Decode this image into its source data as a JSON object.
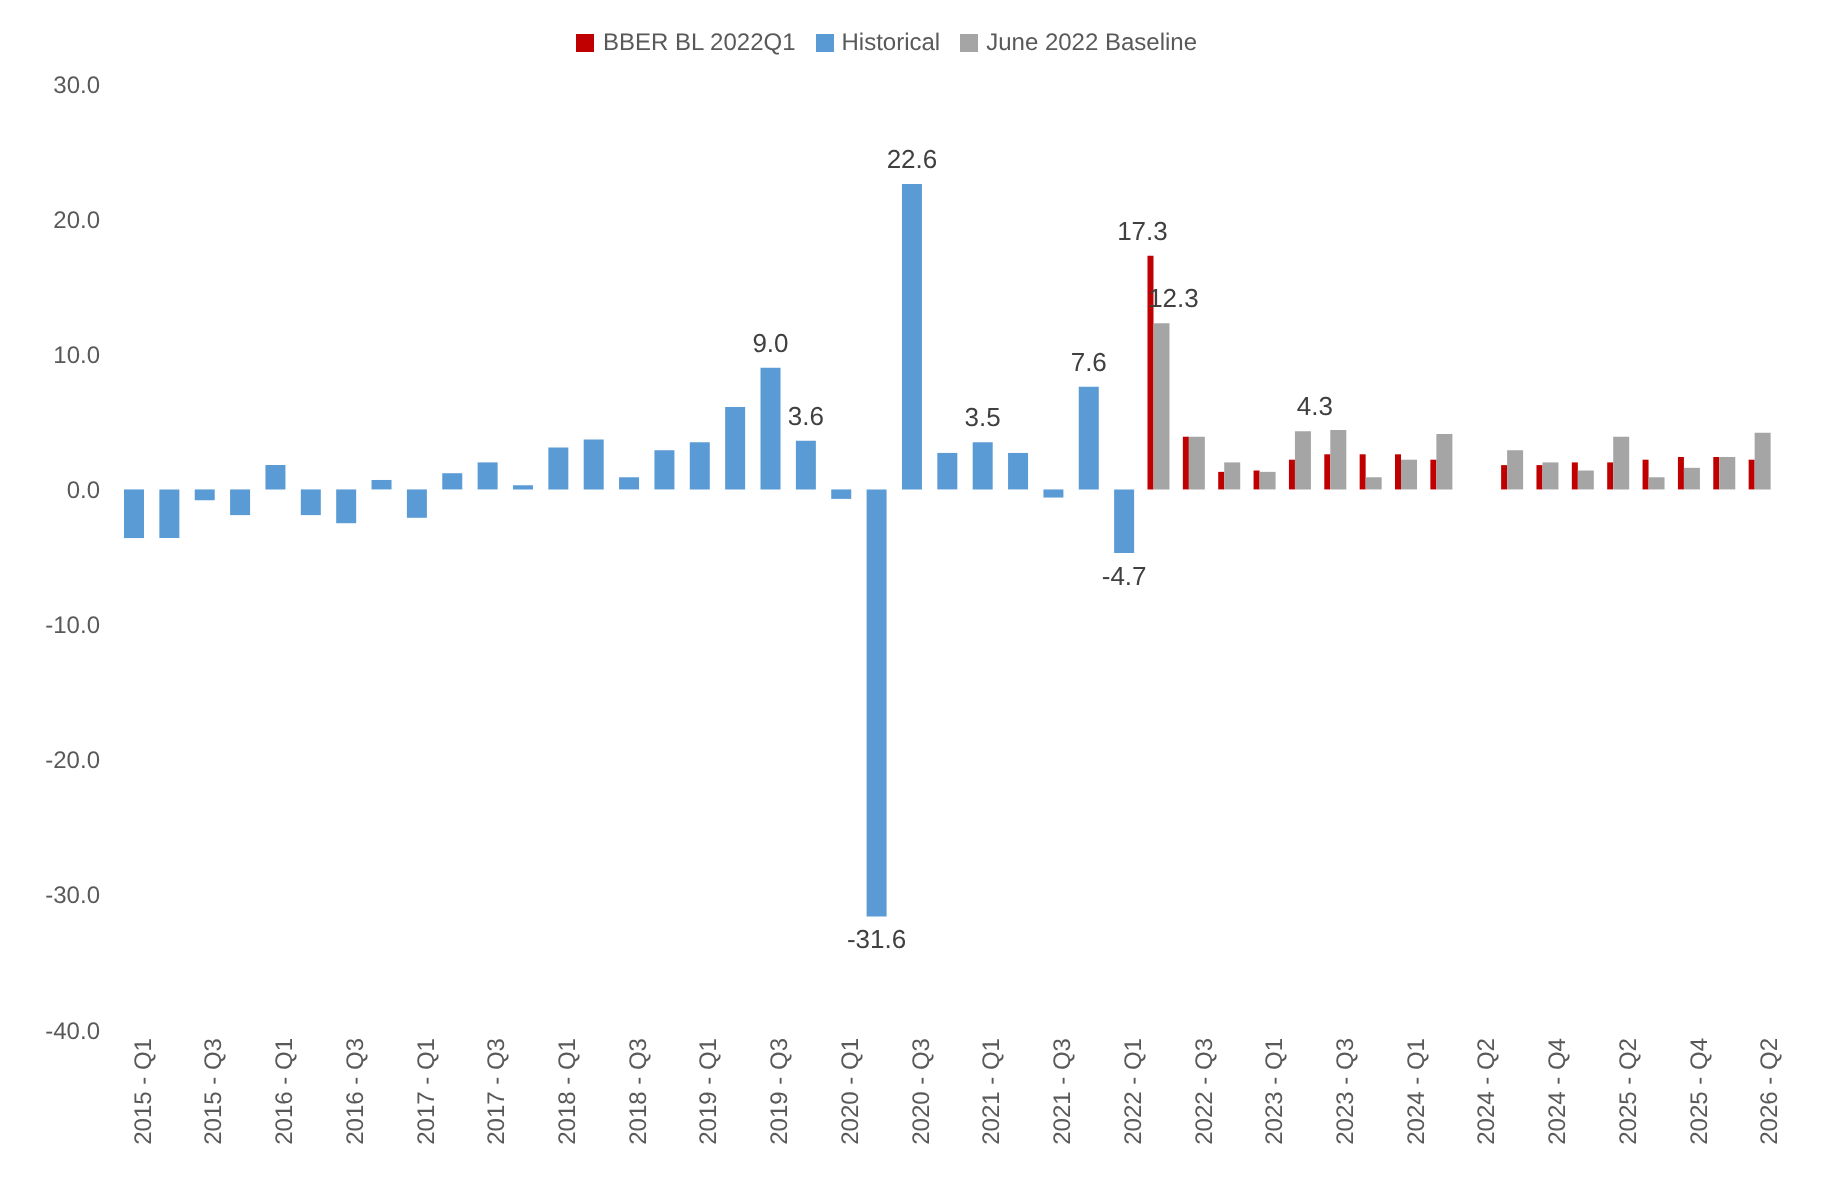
{
  "chart_data": {
    "type": "bar",
    "categories": [
      "2015 - Q1",
      null,
      "2015 - Q3",
      null,
      "2016 - Q1",
      null,
      "2016 - Q3",
      null,
      "2017 - Q1",
      null,
      "2017 - Q3",
      null,
      "2018 - Q1",
      null,
      "2018 - Q3",
      null,
      "2019 - Q1",
      null,
      "2019 - Q3",
      null,
      "2020 - Q1",
      null,
      "2020 - Q3",
      null,
      "2021 - Q1",
      null,
      "2021 - Q3",
      null,
      "2022 - Q1",
      null,
      "2022 - Q3",
      null,
      "2023 - Q1",
      null,
      "2023 - Q3",
      null,
      "2024 - Q1",
      null,
      "2024 - Q2",
      null,
      "2024 - Q4",
      null,
      "2025 - Q2",
      null,
      "2025 - Q4",
      null,
      "2026 - Q2"
    ],
    "series": [
      {
        "name": "Historical",
        "color": "#5b9bd5",
        "values": [
          -3.6,
          -3.6,
          -0.8,
          -1.9,
          1.8,
          -1.9,
          -2.5,
          0.7,
          -2.1,
          1.2,
          2.0,
          0.3,
          3.1,
          3.7,
          0.9,
          2.9,
          3.5,
          6.1,
          9.0,
          3.6,
          -0.7,
          -31.6,
          22.6,
          2.7,
          3.5,
          2.7,
          -0.6,
          7.6,
          -4.7,
          null,
          null,
          null,
          null,
          null,
          null,
          null,
          null,
          null,
          null,
          null,
          null,
          null,
          null,
          null,
          null,
          null,
          null
        ],
        "value_labels": [
          null,
          null,
          null,
          null,
          null,
          null,
          null,
          null,
          null,
          null,
          null,
          null,
          null,
          null,
          null,
          null,
          null,
          null,
          "9.0",
          "3.6",
          null,
          "-31.6",
          "22.6",
          null,
          "3.5",
          null,
          null,
          "7.6",
          "-4.7",
          null,
          null,
          null,
          null,
          null,
          null,
          null,
          null,
          null,
          null,
          null,
          null,
          null,
          null,
          null,
          null,
          null,
          null
        ]
      },
      {
        "name": "BBER BL 2022Q1",
        "color": "#c00000",
        "values": [
          null,
          null,
          null,
          null,
          null,
          null,
          null,
          null,
          null,
          null,
          null,
          null,
          null,
          null,
          null,
          null,
          null,
          null,
          null,
          null,
          null,
          null,
          null,
          null,
          null,
          null,
          null,
          null,
          null,
          17.3,
          3.9,
          1.3,
          1.4,
          2.2,
          2.6,
          2.6,
          2.6,
          2.2,
          null,
          1.8,
          1.8,
          2.0,
          2.0,
          2.2,
          2.4,
          2.4,
          2.2
        ],
        "value_labels": [
          null,
          null,
          null,
          null,
          null,
          null,
          null,
          null,
          null,
          null,
          null,
          null,
          null,
          null,
          null,
          null,
          null,
          null,
          null,
          null,
          null,
          null,
          null,
          null,
          null,
          null,
          null,
          null,
          null,
          "17.3",
          null,
          null,
          null,
          null,
          null,
          null,
          null,
          null,
          null,
          null,
          null,
          null,
          null,
          null,
          null,
          null,
          null
        ]
      },
      {
        "name": "June 2022 Baseline",
        "color": "#a5a5a5",
        "values": [
          null,
          null,
          null,
          null,
          null,
          null,
          null,
          null,
          null,
          null,
          null,
          null,
          null,
          null,
          null,
          null,
          null,
          null,
          null,
          null,
          null,
          null,
          null,
          null,
          null,
          null,
          null,
          null,
          null,
          12.3,
          3.9,
          2.0,
          1.3,
          4.3,
          4.4,
          0.9,
          2.2,
          4.1,
          null,
          2.9,
          2.0,
          1.4,
          3.9,
          0.9,
          1.6,
          2.4,
          4.2
        ],
        "value_labels": [
          null,
          null,
          null,
          null,
          null,
          null,
          null,
          null,
          null,
          null,
          null,
          null,
          null,
          null,
          null,
          null,
          null,
          null,
          null,
          null,
          null,
          null,
          null,
          null,
          null,
          null,
          null,
          null,
          null,
          "12.3",
          null,
          null,
          null,
          "4.3",
          null,
          null,
          null,
          null,
          null,
          null,
          null,
          null,
          null,
          null,
          null,
          null,
          null
        ]
      }
    ],
    "ylim": [
      -40,
      30
    ],
    "yticks": [
      {
        "value": -40,
        "label": "-40.0"
      },
      {
        "value": -30,
        "label": "-30.0"
      },
      {
        "value": -20,
        "label": "-20.0"
      },
      {
        "value": -10,
        "label": "-10.0"
      },
      {
        "value": 0,
        "label": "0.0"
      },
      {
        "value": 10,
        "label": "10.0"
      },
      {
        "value": 20,
        "label": "20.0"
      },
      {
        "value": 30,
        "label": "30.0"
      }
    ],
    "grid": false,
    "legend": "top"
  }
}
